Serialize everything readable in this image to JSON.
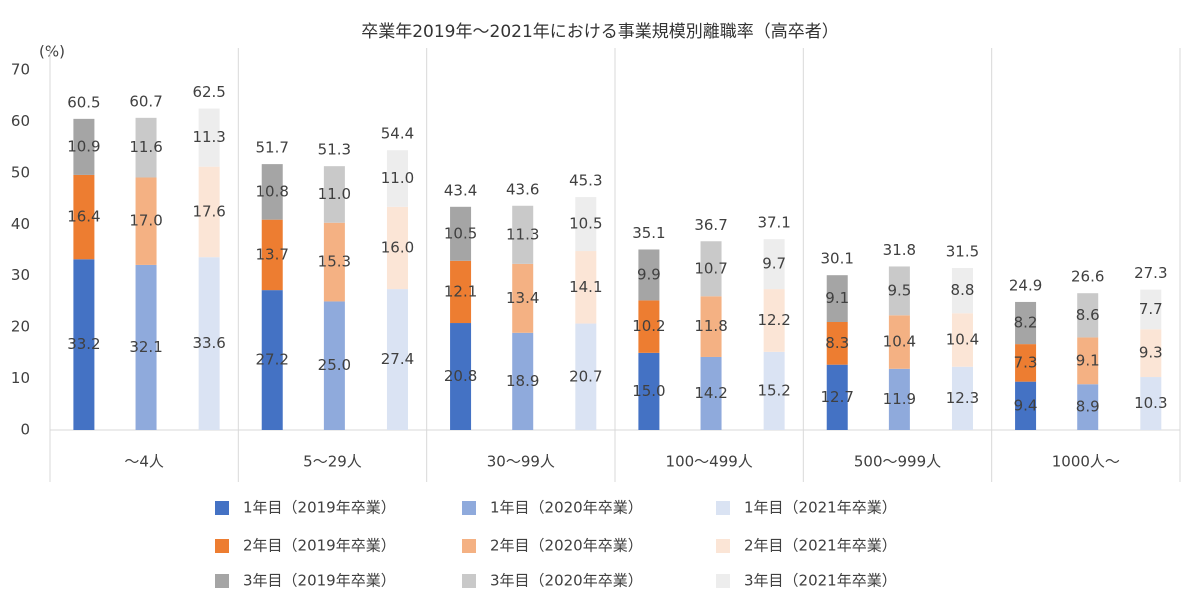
{
  "chart_data": {
    "type": "bar",
    "stacked": true,
    "title": "卒業年2019年～2021年における事業規模別離職率（高卒者）",
    "y_label": "(%)",
    "categories": [
      "～4人",
      "5～29人",
      "30～99人",
      "100～499人",
      "500～999人",
      "1000人～"
    ],
    "ylim": [
      0,
      70
    ],
    "yticks": [
      0,
      10,
      20,
      30,
      40,
      50,
      60,
      70
    ],
    "grid": false,
    "groups": [
      {
        "totals": [
          60.5,
          51.7,
          43.4,
          35.1,
          30.1,
          24.9
        ],
        "series": [
          {
            "name": "1年目（2019年卒業）",
            "color": "#4472c4",
            "values": [
              33.2,
              27.2,
              20.8,
              15.0,
              12.7,
              9.4
            ],
            "value_labels": [
              "33.2",
              "27.2",
              "20.8",
              "15.0",
              "12.7",
              "9.4"
            ]
          },
          {
            "name": "2年目（2019年卒業）",
            "color": "#ed7d31",
            "values": [
              16.4,
              13.7,
              12.1,
              10.2,
              8.3,
              7.3
            ],
            "value_labels": [
              "16.4",
              "13.7",
              "12.1",
              "10.2",
              "8.3",
              "7.3"
            ]
          },
          {
            "name": "3年目（2019年卒業）",
            "color": "#a5a5a5",
            "values": [
              10.9,
              10.8,
              10.5,
              9.9,
              9.1,
              8.2
            ],
            "value_labels": [
              "10.9",
              "10.8",
              "10.5",
              "9.9",
              "9.1",
              "8.2"
            ]
          }
        ]
      },
      {
        "totals": [
          60.7,
          51.3,
          43.6,
          36.7,
          31.8,
          26.6
        ],
        "series": [
          {
            "name": "1年目（2020年卒業）",
            "color": "#8faadc",
            "values": [
              32.1,
              25.0,
              18.9,
              14.2,
              11.9,
              8.9
            ],
            "value_labels": [
              "32.1",
              "25.0",
              "18.9",
              "14.2",
              "11.9",
              "8.9"
            ]
          },
          {
            "name": "2年目（2020年卒業）",
            "color": "#f4b183",
            "values": [
              17.0,
              15.3,
              13.4,
              11.8,
              10.4,
              9.1
            ],
            "value_labels": [
              "17.0",
              "15.3",
              "13.4",
              "11.8",
              "10.4",
              "9.1"
            ]
          },
          {
            "name": "3年目（2020年卒業）",
            "color": "#c9c9c9",
            "values": [
              11.6,
              11.0,
              11.3,
              10.7,
              9.5,
              8.6
            ],
            "value_labels": [
              "11.6",
              "11.0",
              "11.3",
              "10.7",
              "9.5",
              "8.6"
            ]
          }
        ]
      },
      {
        "totals": [
          62.5,
          54.4,
          45.3,
          37.1,
          31.5,
          27.3
        ],
        "series": [
          {
            "name": "1年目（2021年卒業）",
            "color": "#dae3f3",
            "values": [
              33.6,
              27.4,
              20.7,
              15.2,
              12.3,
              10.3
            ],
            "value_labels": [
              "33.6",
              "27.4",
              "20.7",
              "15.2",
              "12.3",
              "10.3"
            ]
          },
          {
            "name": "2年目（2021年卒業）",
            "color": "#fbe5d6",
            "values": [
              17.6,
              16.0,
              14.1,
              12.2,
              10.4,
              9.3
            ],
            "value_labels": [
              "17.6",
              "16.0",
              "14.1",
              "12.2",
              "10.4",
              "9.3"
            ]
          },
          {
            "name": "3年目（2021年卒業）",
            "color": "#ededed",
            "values": [
              11.3,
              11.0,
              10.5,
              9.7,
              8.8,
              7.7
            ],
            "value_labels": [
              "11.3",
              "11.0",
              "10.5",
              "9.7",
              "8.8",
              "7.7"
            ]
          }
        ]
      }
    ]
  }
}
